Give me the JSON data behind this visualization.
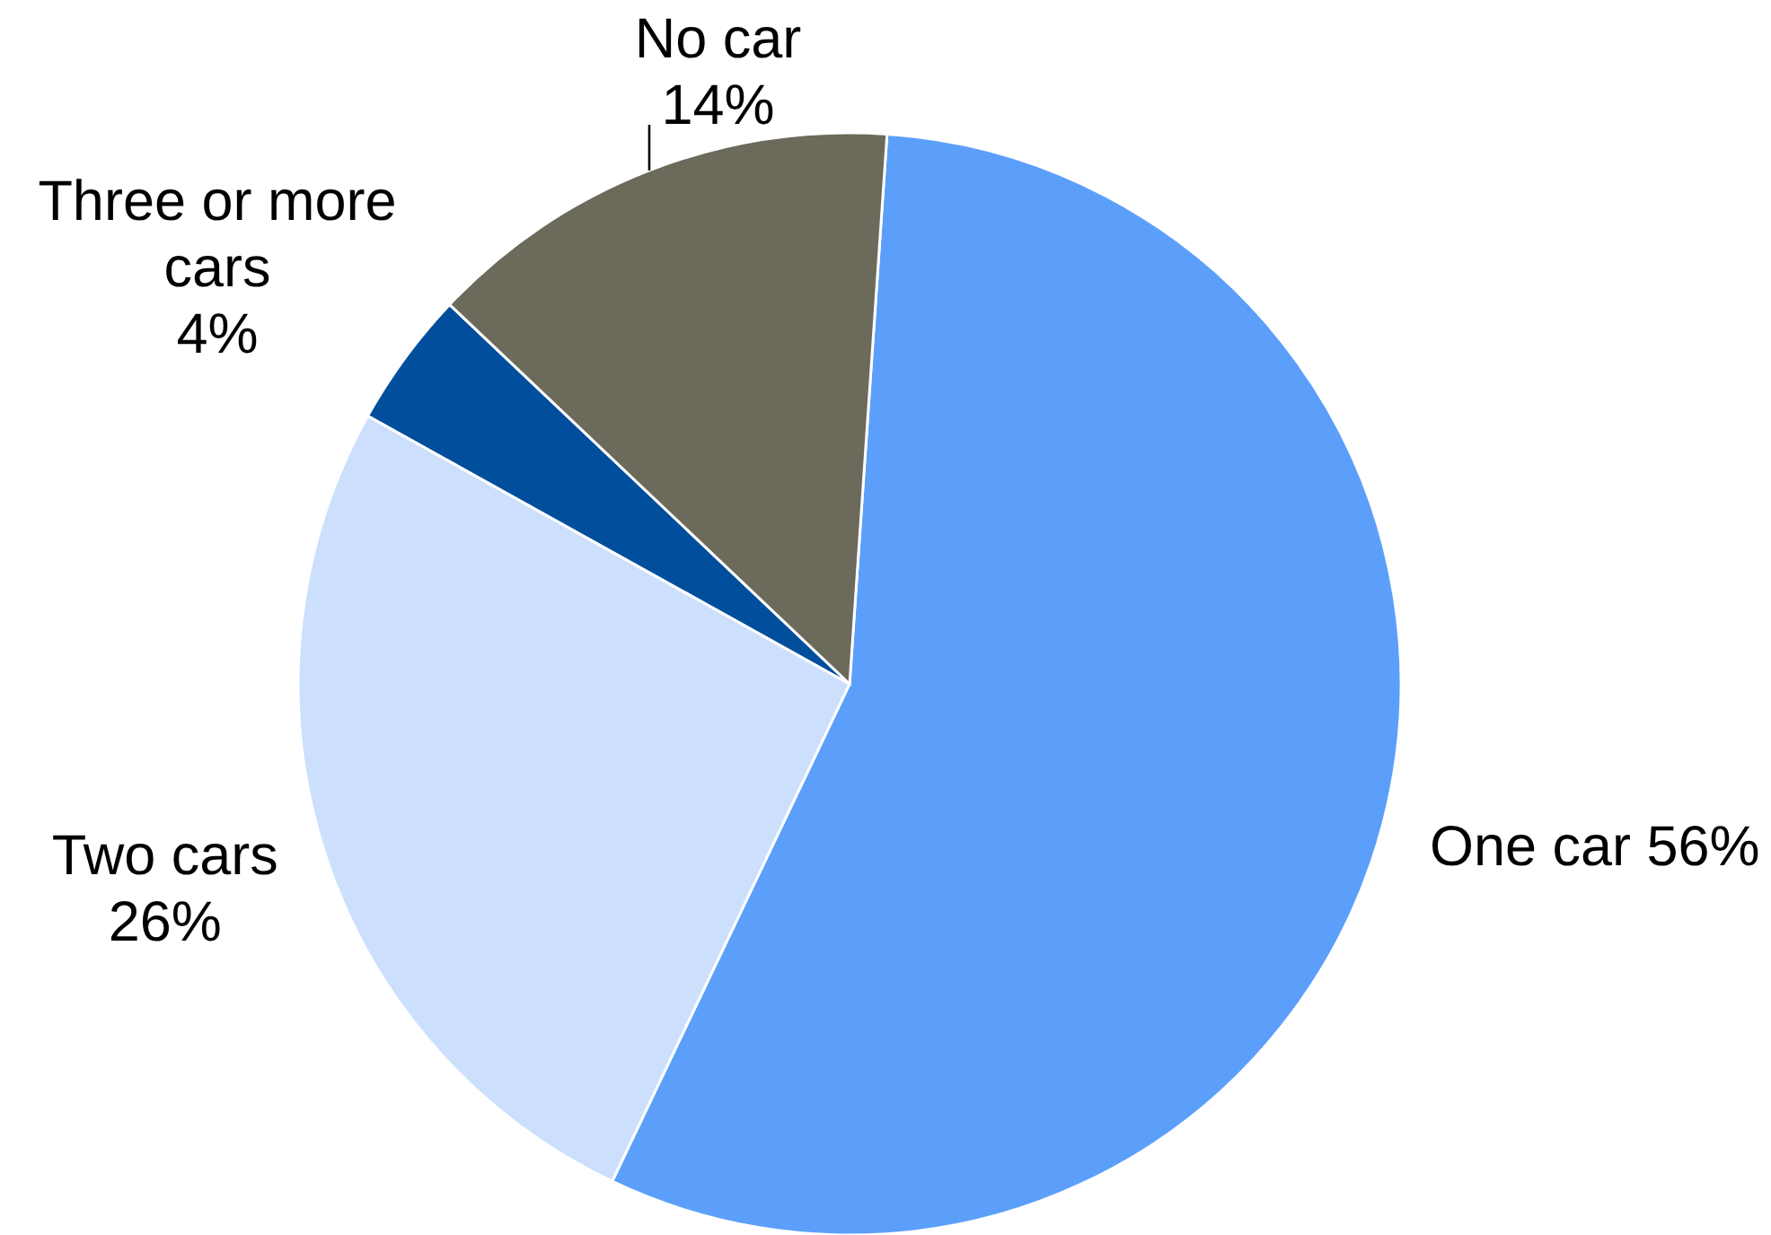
{
  "chart_data": {
    "type": "pie",
    "categories": [
      "One car",
      "Two cars",
      "Three or more cars",
      "No car"
    ],
    "values": [
      56,
      26,
      4,
      14
    ],
    "colors": [
      "#5c9ffb",
      "#cce0fe",
      "#004e9c",
      "#6b6a5b"
    ],
    "value_labels": [
      "56%",
      "26%",
      "4%",
      "14%"
    ]
  }
}
